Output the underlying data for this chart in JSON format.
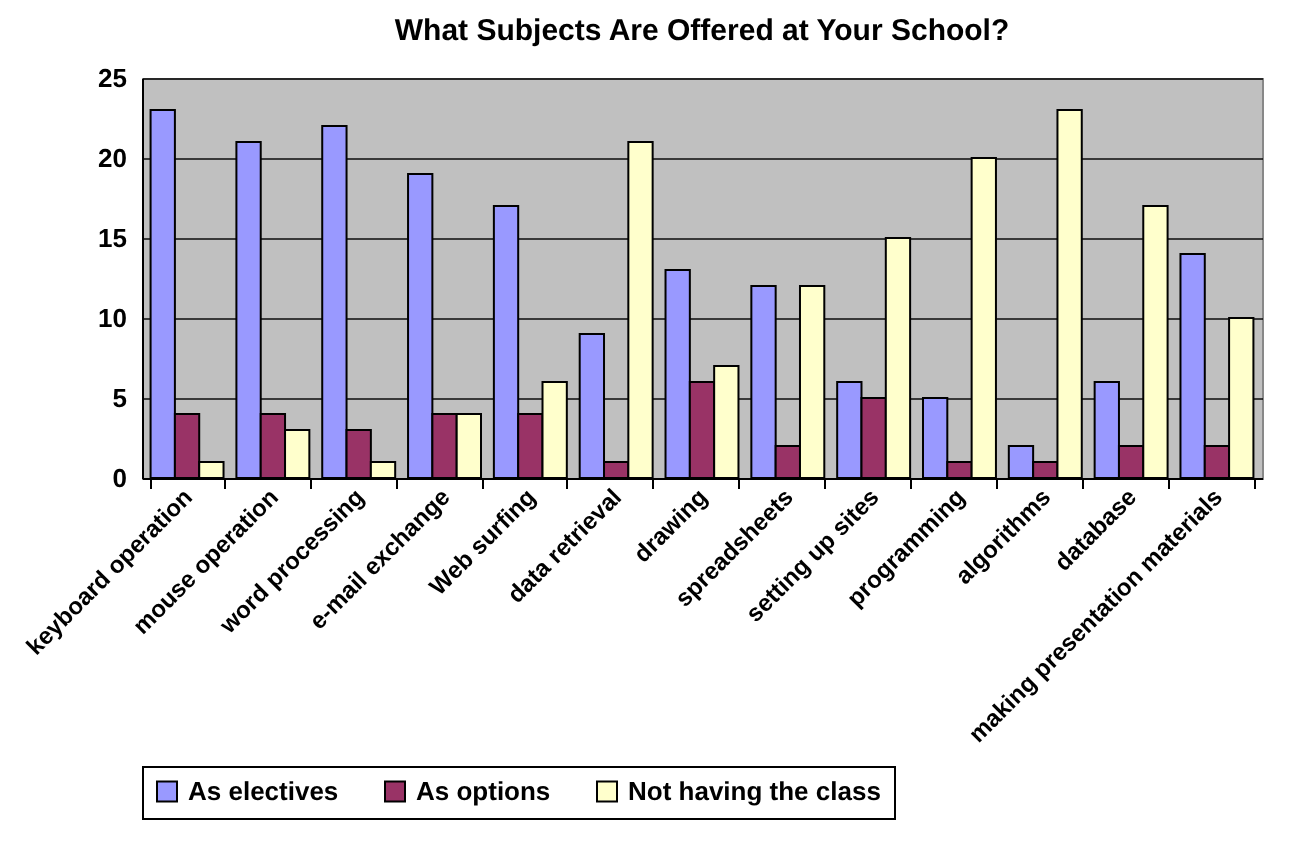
{
  "chart_data": {
    "type": "bar",
    "title": "What Subjects Are Offered at Your School?",
    "categories": [
      "keyboard operation",
      "mouse operation",
      "word processing",
      "e-mail exchange",
      "Web surfing",
      "data retrieval",
      "drawing",
      "spreadsheets",
      "setting up sites",
      "programming",
      "algorithms",
      "database",
      "making presentation materials"
    ],
    "series": [
      {
        "name": "As electives",
        "color": "#9999ff",
        "values": [
          23,
          21,
          22,
          19,
          17,
          9,
          13,
          12,
          6,
          5,
          2,
          6,
          14
        ]
      },
      {
        "name": "As options",
        "color": "#993366",
        "values": [
          4,
          4,
          3,
          4,
          4,
          1,
          6,
          2,
          5,
          1,
          1,
          2,
          2
        ]
      },
      {
        "name": "Not having the class",
        "color": "#ffffcc",
        "values": [
          1,
          3,
          1,
          4,
          6,
          21,
          7,
          12,
          15,
          20,
          23,
          17,
          10
        ]
      }
    ],
    "ylim": [
      0,
      25
    ],
    "yticks": [
      0,
      5,
      10,
      15,
      20,
      25
    ],
    "grid": "y",
    "legend": "bottom"
  }
}
